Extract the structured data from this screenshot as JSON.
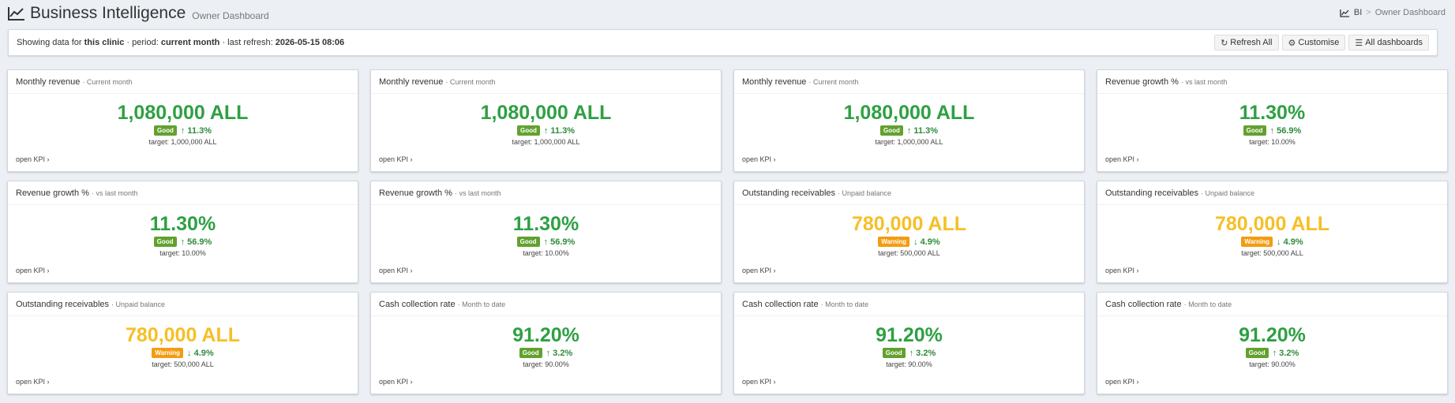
{
  "header": {
    "title": "Business Intelligence",
    "subtitle": "Owner Dashboard",
    "icon": "line-chart-icon"
  },
  "breadcrumb": {
    "items": [
      "BI",
      "Owner Dashboard"
    ],
    "separator": ">"
  },
  "infobar": {
    "prefix": "Showing data for ",
    "scope": "this clinic",
    "period_label": " · period: ",
    "period": "current month",
    "refresh_label": " · last refresh: ",
    "refresh": "2026-05-15 08:06"
  },
  "toolbar": {
    "refresh_label": "Refresh All",
    "customise_label": "Customise",
    "all_dashboards_label": "All dashboards"
  },
  "cards": [
    {
      "title": "Monthly revenue",
      "sub": "· Current month",
      "value": "1,080,000 ALL",
      "status": "good",
      "badge": "Good",
      "delta": "↑ 11.3%",
      "target": "target: 1,000,000 ALL",
      "link": "open KPI ›"
    },
    {
      "title": "Monthly revenue",
      "sub": "· Current month",
      "value": "1,080,000 ALL",
      "status": "good",
      "badge": "Good",
      "delta": "↑ 11.3%",
      "target": "target: 1,000,000 ALL",
      "link": "open KPI ›"
    },
    {
      "title": "Monthly revenue",
      "sub": "· Current month",
      "value": "1,080,000 ALL",
      "status": "good",
      "badge": "Good",
      "delta": "↑ 11.3%",
      "target": "target: 1,000,000 ALL",
      "link": "open KPI ›"
    },
    {
      "title": "Revenue growth %",
      "sub": "· vs last month",
      "value": "11.30%",
      "status": "good",
      "badge": "Good",
      "delta": "↑ 56.9%",
      "target": "target: 10.00%",
      "link": "open KPI ›"
    },
    {
      "title": "Revenue growth %",
      "sub": "· vs last month",
      "value": "11.30%",
      "status": "good",
      "badge": "Good",
      "delta": "↑ 56.9%",
      "target": "target: 10.00%",
      "link": "open KPI ›"
    },
    {
      "title": "Revenue growth %",
      "sub": "· vs last month",
      "value": "11.30%",
      "status": "good",
      "badge": "Good",
      "delta": "↑ 56.9%",
      "target": "target: 10.00%",
      "link": "open KPI ›"
    },
    {
      "title": "Outstanding receivables",
      "sub": "· Unpaid balance",
      "value": "780,000 ALL",
      "status": "warn",
      "badge": "Warning",
      "delta": "↓ 4.9%",
      "target": "target: 500,000 ALL",
      "link": "open KPI ›"
    },
    {
      "title": "Outstanding receivables",
      "sub": "· Unpaid balance",
      "value": "780,000 ALL",
      "status": "warn",
      "badge": "Warning",
      "delta": "↓ 4.9%",
      "target": "target: 500,000 ALL",
      "link": "open KPI ›"
    },
    {
      "title": "Outstanding receivables",
      "sub": "· Unpaid balance",
      "value": "780,000 ALL",
      "status": "warn",
      "badge": "Warning",
      "delta": "↓ 4.9%",
      "target": "target: 500,000 ALL",
      "link": "open KPI ›"
    },
    {
      "title": "Cash collection rate",
      "sub": "· Month to date",
      "value": "91.20%",
      "status": "good",
      "badge": "Good",
      "delta": "↑ 3.2%",
      "target": "target: 90.00%",
      "link": "open KPI ›"
    },
    {
      "title": "Cash collection rate",
      "sub": "· Month to date",
      "value": "91.20%",
      "status": "good",
      "badge": "Good",
      "delta": "↑ 3.2%",
      "target": "target: 90.00%",
      "link": "open KPI ›"
    },
    {
      "title": "Cash collection rate",
      "sub": "· Month to date",
      "value": "91.20%",
      "status": "good",
      "badge": "Good",
      "delta": "↑ 3.2%",
      "target": "target: 90.00%",
      "link": "open KPI ›"
    }
  ],
  "colors": {
    "good_value": "#2ea043",
    "warn_value": "#f6bf26",
    "good_badge": "#62a12f",
    "warn_badge": "#f39c12"
  }
}
